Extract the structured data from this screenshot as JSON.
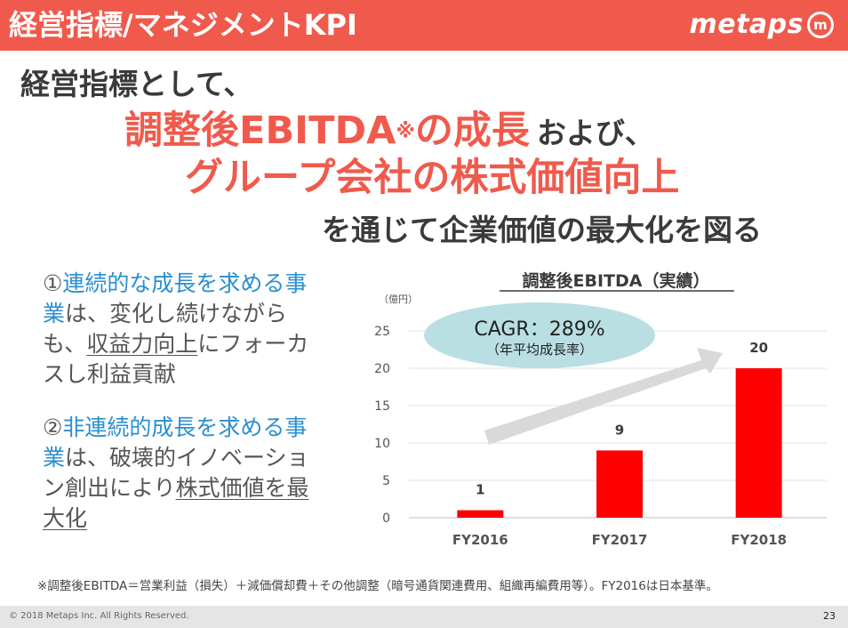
{
  "header": {
    "title": "経営指標/マネジメントKPI",
    "logo_text": "metaps",
    "logo_mark": "m",
    "color": "#f05a4c"
  },
  "headline": {
    "line1": "経営指標として、",
    "line2_red": "調整後EBITDA",
    "line2_mark": "※",
    "line2_red2": "の成長",
    "line2_gray": "および、",
    "line3": "グループ会社の株式価値向上",
    "line4": "を通じて企業価値の最大化を図る"
  },
  "points": [
    {
      "num": "①",
      "lead_blue": "連続的な成長を求める事業",
      "text_a": "は、変化し続けながらも、",
      "underlined": "収益力向上",
      "text_b": "にフォーカスし利益貢献"
    },
    {
      "num": "②",
      "lead_blue": "非連続的成長を求める事業",
      "text_a": "は、破壊的イノベーション創出により",
      "underlined": "株式価値を最大化",
      "text_b": ""
    }
  ],
  "chart_data": {
    "type": "bar",
    "title": "調整後EBITDA（実績）",
    "unit_label": "（億円）",
    "categories": [
      "FY2016",
      "FY2017",
      "FY2018"
    ],
    "values": [
      1,
      9,
      20
    ],
    "ylim": [
      0,
      25
    ],
    "yticks": [
      0,
      5,
      10,
      15,
      20,
      25
    ],
    "grid": true,
    "bar_color": "#ff0000",
    "annotation": {
      "main": "CAGR：289%",
      "sub": "（年平均成長率）",
      "bubble_color": "#b9dfe3",
      "arrow_color": "#d9d9d9"
    }
  },
  "footnote": "※調整後EBITDA＝営業利益（損失）＋減価償却費＋その他調整（暗号通貨関連費用、組織再編費用等）。FY2016は日本基準。",
  "footer": {
    "copyright": "© 2018 Metaps Inc. All Rights Reserved.",
    "page": "23"
  }
}
